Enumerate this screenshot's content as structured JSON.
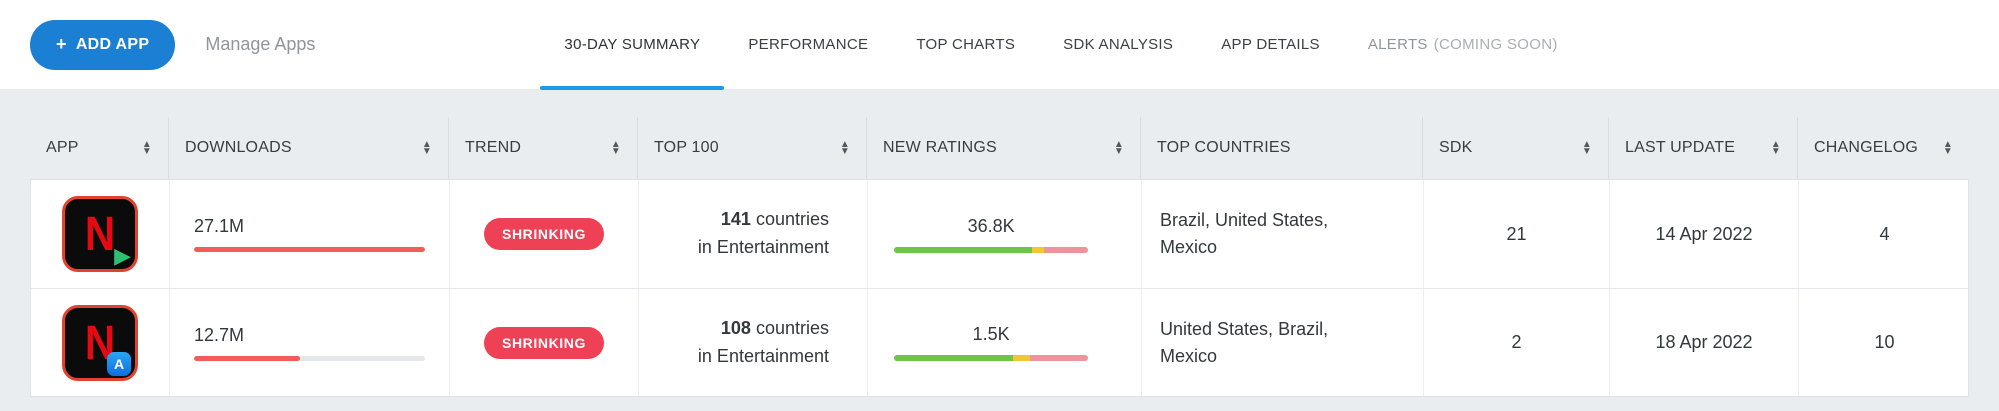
{
  "toolbar": {
    "add_app": {
      "plus": "+",
      "label": "ADD APP"
    },
    "manage_apps_label": "Manage Apps"
  },
  "tabs": [
    {
      "label": "30-DAY SUMMARY",
      "active": true
    },
    {
      "label": "PERFORMANCE",
      "active": false
    },
    {
      "label": "TOP CHARTS",
      "active": false
    },
    {
      "label": "SDK ANALYSIS",
      "active": false
    },
    {
      "label": "APP DETAILS",
      "active": false
    },
    {
      "label": "ALERTS",
      "suffix": "(COMING SOON)",
      "active": false,
      "disabled": true
    }
  ],
  "table": {
    "headers": [
      {
        "label": "APP",
        "sortable": true
      },
      {
        "label": "DOWNLOADS",
        "sortable": true
      },
      {
        "label": "TREND",
        "sortable": true
      },
      {
        "label": "TOP 100",
        "sortable": true
      },
      {
        "label": "NEW RATINGS",
        "sortable": true
      },
      {
        "label": "TOP COUNTRIES",
        "sortable": false
      },
      {
        "label": "SDK",
        "sortable": true
      },
      {
        "label": "LAST UPDATE",
        "sortable": true
      },
      {
        "label": "CHANGELOG",
        "sortable": true
      }
    ],
    "rows": [
      {
        "app_icon": "netflix-google-play",
        "app_letter": "N",
        "store_badge": "google-play",
        "downloads": "27.1M",
        "downloads_bar_pct": 100,
        "trend": "SHRINKING",
        "top100": {
          "count": "141",
          "unit": "countries",
          "category": "in Entertainment"
        },
        "new_ratings": "36.8K",
        "ratings_bar": {
          "positive_pct": 71,
          "neutral_pct": 6,
          "negative_pct": 23
        },
        "top_countries": "Brazil, United States, Mexico",
        "sdk": "21",
        "last_update": "14 Apr 2022",
        "changelog": "4"
      },
      {
        "app_icon": "netflix-app-store",
        "app_letter": "N",
        "store_badge": "app-store",
        "store_badge_glyph": "A",
        "downloads": "12.7M",
        "downloads_bar_pct": 46,
        "trend": "SHRINKING",
        "top100": {
          "count": "108",
          "unit": "countries",
          "category": "in Entertainment"
        },
        "new_ratings": "1.5K",
        "ratings_bar": {
          "positive_pct": 61,
          "neutral_pct": 9,
          "negative_pct": 30
        },
        "top_countries": "United States, Brazil, Mexico",
        "sdk": "2",
        "last_update": "18 Apr 2022",
        "changelog": "10"
      }
    ]
  },
  "icons": {
    "sort_up": "▲",
    "sort_down": "▼",
    "play_badge": "▶"
  },
  "colors": {
    "accent_blue": "#1b7fd3",
    "active_tab_underline": "#1b9ae6",
    "trend_badge_red": "#ef4155",
    "downloads_bar_red": "#f25c5a",
    "ratings_positive_green": "#6fc546",
    "ratings_neutral_yellow": "#f3c634",
    "ratings_negative_pink": "#ef949c",
    "netflix_red": "#e50914"
  }
}
